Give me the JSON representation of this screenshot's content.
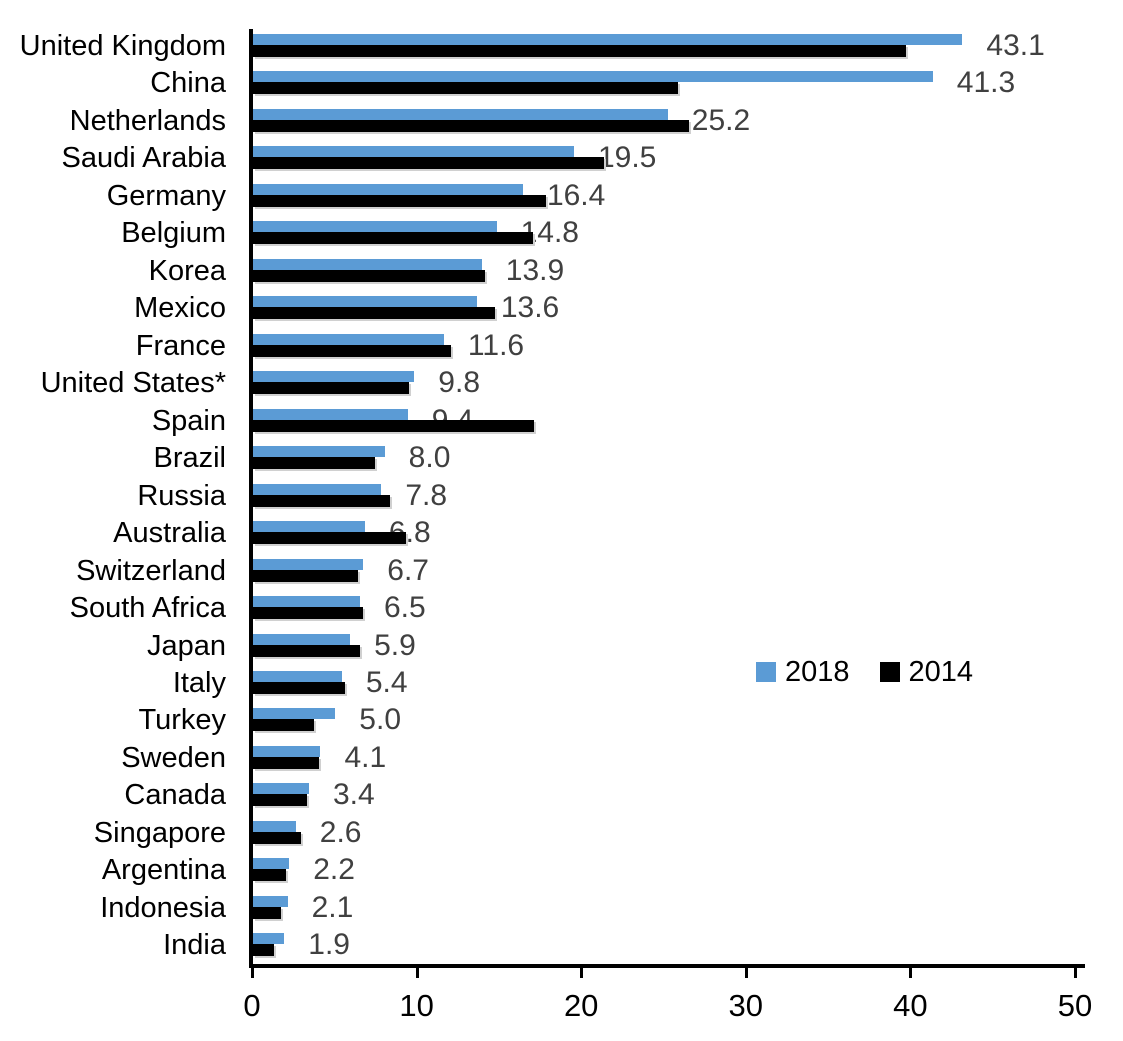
{
  "chart_data": {
    "type": "bar",
    "orientation": "horizontal",
    "title": "",
    "xlabel": "",
    "ylabel": "",
    "grid": false,
    "background": "#FFFFFF",
    "axis_color": "#000000",
    "categories": [
      "United Kingdom",
      "China",
      "Netherlands",
      "Saudi Arabia",
      "Germany",
      "Belgium",
      "Korea",
      "Mexico",
      "France",
      "United States*",
      "Spain",
      "Brazil",
      "Russia",
      "Australia",
      "Switzerland",
      "South Africa",
      "Japan",
      "Italy",
      "Turkey",
      "Sweden",
      "Canada",
      "Singapore",
      "Argentina",
      "Indonesia",
      "India"
    ],
    "series": [
      {
        "name": "2018",
        "color": "#5B9BD5",
        "values": [
          43.1,
          41.3,
          25.2,
          19.5,
          16.4,
          14.8,
          13.9,
          13.6,
          11.6,
          9.8,
          9.4,
          8.0,
          7.8,
          6.8,
          6.7,
          6.5,
          5.9,
          5.4,
          5.0,
          4.1,
          3.4,
          2.6,
          2.2,
          2.1,
          1.9
        ]
      },
      {
        "name": "2014",
        "color": "#000000",
        "values": [
          39.7,
          25.8,
          26.5,
          21.3,
          17.8,
          17.0,
          14.1,
          14.7,
          12.0,
          9.5,
          17.1,
          7.4,
          8.3,
          9.3,
          6.4,
          6.7,
          6.5,
          5.6,
          3.7,
          4.0,
          3.3,
          2.9,
          2.0,
          1.7,
          1.3
        ]
      }
    ],
    "value_labels": {
      "series": "2018",
      "color": "#404040",
      "values": [
        "43.1",
        "41.3",
        "25.2",
        "19.5",
        "16.4",
        "14.8",
        "13.9",
        "13.6",
        "11.6",
        "9.8",
        "9.4",
        "8.0",
        "7.8",
        "6.8",
        "6.7",
        "6.5",
        "5.9",
        "5.4",
        "5.0",
        "4.1",
        "3.4",
        "2.6",
        "2.2",
        "2.1",
        "1.9"
      ]
    },
    "x_axis": {
      "range": [
        0,
        50
      ],
      "tick_values": [
        0,
        10,
        20,
        30,
        40,
        50
      ],
      "ticks": [
        "0",
        "10",
        "20",
        "30",
        "40",
        "50"
      ]
    },
    "legend": {
      "position": "middle-right",
      "entries": [
        {
          "label": "2018",
          "color": "#5B9BD5"
        },
        {
          "label": "2014",
          "color": "#000000"
        }
      ]
    }
  }
}
